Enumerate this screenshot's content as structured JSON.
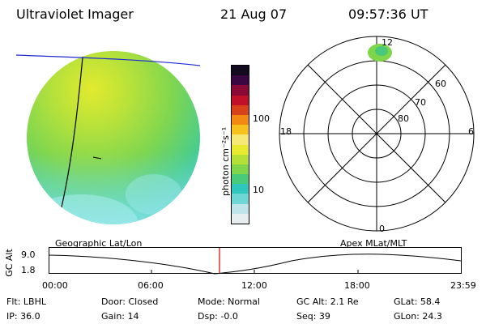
{
  "header": {
    "instrument": "Ultraviolet Imager",
    "date": "21 Aug 07",
    "time": "09:57:36 UT"
  },
  "colorbar": {
    "unit_label": "photon cm⁻²s⁻¹",
    "ticks": [
      "100",
      "10"
    ],
    "colors": [
      "#e6eef0",
      "#bfe4ea",
      "#6fd6d6",
      "#2ec6bd",
      "#49c97a",
      "#7fd64a",
      "#b5e038",
      "#e7ea2e",
      "#f6e978",
      "#f7c21e",
      "#f08a12",
      "#d9431b",
      "#c0102a",
      "#8a0a37",
      "#3a0742",
      "#120a1e"
    ]
  },
  "polar": {
    "labels": {
      "top": "12",
      "left": "18",
      "right": "6",
      "bottom": "0",
      "lat60": "60",
      "lat70": "70",
      "lat80": "80"
    }
  },
  "timeline": {
    "left_label": "Geographic Lat/Lon",
    "right_label": "Apex  MLat/MLT",
    "y_axis_label": "GC Alt",
    "y_ticks": [
      "9.0",
      "1.8"
    ],
    "x_ticks": [
      "00:00",
      "06:00",
      "12:00",
      "18:00",
      "23:59"
    ]
  },
  "status": {
    "flt": "Flt: LBHL",
    "ip": "IP: 36.0",
    "door": "Door: Closed",
    "gain": "Gain: 14",
    "mode": "Mode: Normal",
    "dsp": "Dsp:    -0.0",
    "gcalt": "GC Alt: 2.1 Re",
    "seq": "Seq: 39",
    "glat": "GLat:  58.4",
    "glon": "GLon:  24.3"
  }
}
